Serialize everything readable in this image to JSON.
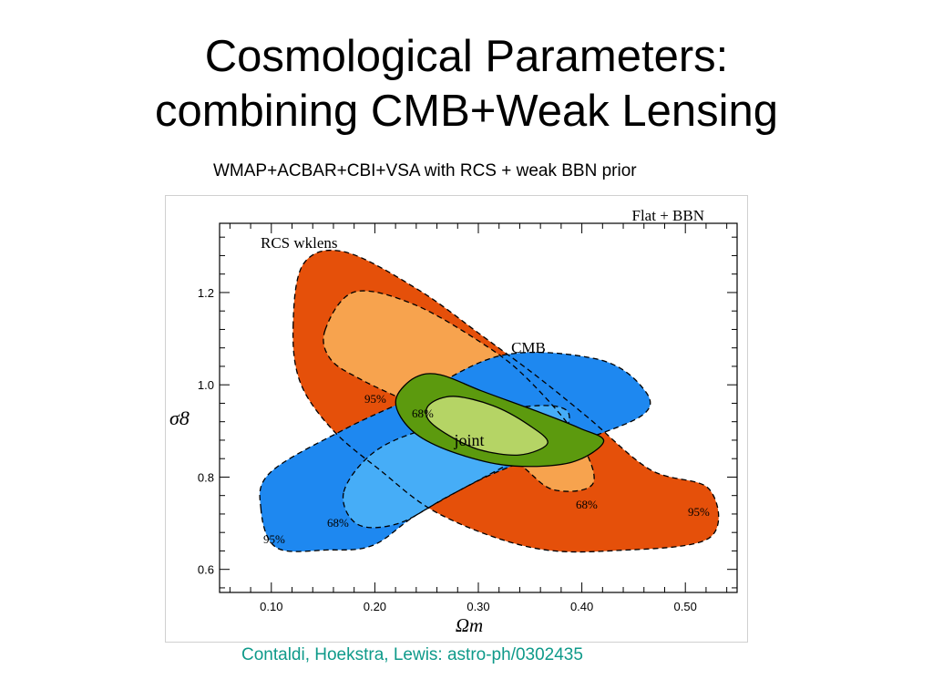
{
  "slide": {
    "title_line1": "Cosmological Parameters:",
    "title_line2": "combining CMB+Weak Lensing",
    "subtitle": "WMAP+ACBAR+CBI+VSA with RCS + weak BBN prior",
    "caption": "Contaldi, Hoekstra, Lewis: astro-ph/0302435"
  },
  "chart_data": {
    "type": "contour",
    "title": "Flat + BBN",
    "xlabel": "Ωm",
    "ylabel": "σ8",
    "xlim": [
      0.05,
      0.55
    ],
    "ylim": [
      0.55,
      1.35
    ],
    "xticks": [
      0.1,
      0.2,
      0.3,
      0.4,
      0.5
    ],
    "xtick_labels": [
      "0.10",
      "0.20",
      "0.30",
      "0.40",
      "0.50"
    ],
    "yticks": [
      0.6,
      0.8,
      1.0,
      1.2
    ],
    "ytick_labels": [
      "0.6",
      "0.8",
      "1.0",
      "1.2"
    ],
    "grid": false,
    "colors": {
      "rcs_95": "#e5500a",
      "rcs_68": "#f7a34e",
      "cmb_95": "#1e88f0",
      "cmb_68": "#46adf7",
      "joint_95": "#5c9a0e",
      "joint_68": "#b5d465"
    },
    "series": [
      {
        "name": "RCS wklens",
        "contours": [
          {
            "level": "95%",
            "points": [
              [
                0.121,
                1.126
              ],
              [
                0.131,
                1.262
              ],
              [
                0.171,
                1.288
              ],
              [
                0.242,
                1.206
              ],
              [
                0.305,
                1.104
              ],
              [
                0.358,
                1.016
              ],
              [
                0.406,
                0.929
              ],
              [
                0.466,
                0.816
              ],
              [
                0.523,
                0.774
              ],
              [
                0.523,
                0.668
              ],
              [
                0.435,
                0.641
              ],
              [
                0.352,
                0.647
              ],
              [
                0.263,
                0.719
              ],
              [
                0.204,
                0.817
              ],
              [
                0.159,
                0.903
              ],
              [
                0.128,
                1.005
              ]
            ]
          },
          {
            "level": "68%",
            "points": [
              [
                0.152,
                1.119
              ],
              [
                0.18,
                1.201
              ],
              [
                0.237,
                1.175
              ],
              [
                0.303,
                1.091
              ],
              [
                0.346,
                1.016
              ],
              [
                0.395,
                0.889
              ],
              [
                0.411,
                0.787
              ],
              [
                0.372,
                0.773
              ],
              [
                0.337,
                0.832
              ],
              [
                0.285,
                0.896
              ],
              [
                0.24,
                0.954
              ],
              [
                0.187,
                1.011
              ],
              [
                0.157,
                1.056
              ]
            ]
          }
        ],
        "contour_labels": [
          "68%",
          "95%"
        ]
      },
      {
        "name": "CMB",
        "contours": [
          {
            "level": "95%",
            "points": [
              [
                0.09,
                0.73
              ],
              [
                0.099,
                0.81
              ],
              [
                0.171,
                0.904
              ],
              [
                0.238,
                0.974
              ],
              [
                0.323,
                1.064
              ],
              [
                0.414,
                1.056
              ],
              [
                0.457,
                0.998
              ],
              [
                0.459,
                0.935
              ],
              [
                0.378,
                0.862
              ],
              [
                0.309,
                0.802
              ],
              [
                0.241,
                0.719
              ],
              [
                0.198,
                0.652
              ],
              [
                0.154,
                0.642
              ],
              [
                0.105,
                0.647
              ]
            ]
          },
          {
            "level": "68%",
            "points": [
              [
                0.17,
                0.768
              ],
              [
                0.201,
                0.857
              ],
              [
                0.258,
                0.91
              ],
              [
                0.343,
                0.952
              ],
              [
                0.385,
                0.945
              ],
              [
                0.378,
                0.888
              ],
              [
                0.325,
                0.823
              ],
              [
                0.269,
                0.756
              ],
              [
                0.222,
                0.699
              ],
              [
                0.183,
                0.698
              ]
            ]
          }
        ],
        "contour_labels": [
          "68%",
          "95%"
        ]
      },
      {
        "name": "joint",
        "contours": [
          {
            "level": "95%",
            "points": [
              [
                0.221,
                0.974
              ],
              [
                0.239,
                1.016
              ],
              [
                0.263,
                1.022
              ],
              [
                0.303,
                0.987
              ],
              [
                0.355,
                0.944
              ],
              [
                0.398,
                0.906
              ],
              [
                0.421,
                0.877
              ],
              [
                0.39,
                0.832
              ],
              [
                0.335,
                0.824
              ],
              [
                0.288,
                0.845
              ],
              [
                0.246,
                0.884
              ],
              [
                0.225,
                0.93
              ]
            ]
          },
          {
            "level": "68%",
            "points": [
              [
                0.253,
                0.958
              ],
              [
                0.276,
                0.975
              ],
              [
                0.314,
                0.955
              ],
              [
                0.348,
                0.914
              ],
              [
                0.367,
                0.874
              ],
              [
                0.34,
                0.848
              ],
              [
                0.3,
                0.86
              ],
              [
                0.268,
                0.895
              ],
              [
                0.251,
                0.927
              ]
            ]
          }
        ],
        "contour_labels": [
          "68%",
          "95%"
        ]
      }
    ],
    "annotations": [
      "Flat + BBN",
      "RCS wklens",
      "CMB",
      "joint",
      "95%",
      "68%",
      "95%",
      "68%",
      "68%",
      "95%",
      "68%",
      "95%"
    ]
  }
}
